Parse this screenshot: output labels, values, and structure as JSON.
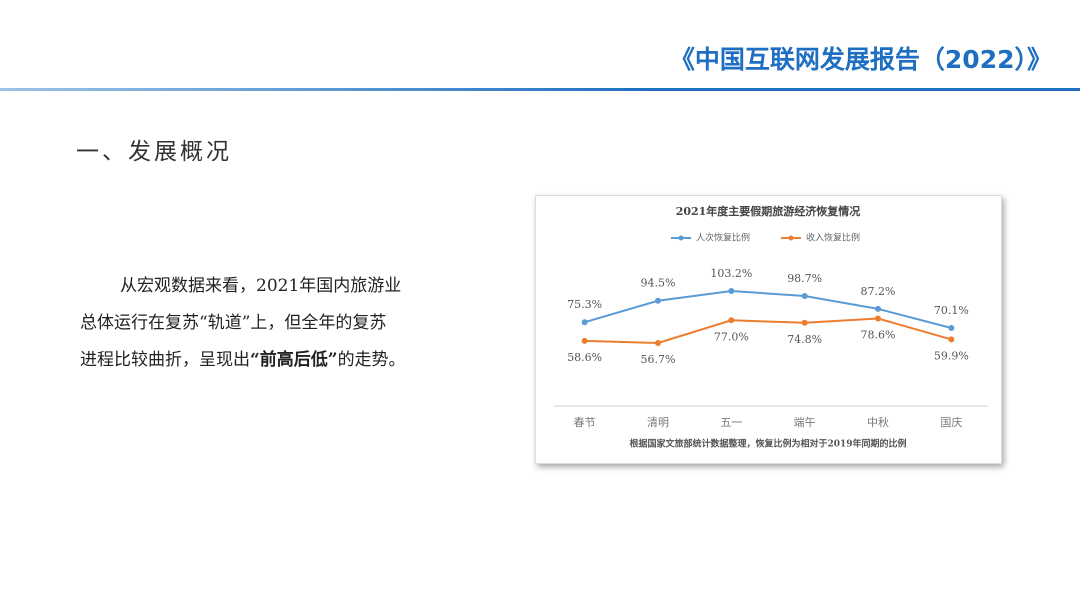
{
  "header": {
    "title": "《中国互联网发展报告（2022）》"
  },
  "section_title": "一、发展概况",
  "paragraph": {
    "segments": [
      "从宏观数据来看，2021年国内旅游业",
      "总体运行在复苏“轨道”上，但全年的复苏",
      "进程比较曲折，呈现出",
      "“前高后低”",
      "的走势。"
    ]
  },
  "chart_data": {
    "type": "line",
    "title": "2021年度主要假期旅游经济恢复情况",
    "categories": [
      "春节",
      "清明",
      "五一",
      "端午",
      "中秋",
      "国庆"
    ],
    "series": [
      {
        "name": "人次恢复比例",
        "color": "#5b9bd5",
        "values": [
          75.3,
          94.5,
          103.2,
          98.7,
          87.2,
          70.1
        ],
        "value_labels": [
          "75.3%",
          "94.5%",
          "103.2%",
          "98.7%",
          "87.2%",
          "70.1%"
        ]
      },
      {
        "name": "收入恢复比例",
        "color": "#ed7d31",
        "values": [
          58.6,
          56.7,
          77.0,
          74.8,
          78.6,
          59.9
        ],
        "value_labels": [
          "58.6%",
          "56.7%",
          "77.0%",
          "74.8%",
          "78.6%",
          "59.9%"
        ]
      }
    ],
    "note": "根据国家文旅部统计数据整理，恢复比例为相对于2019年同期的比例"
  }
}
